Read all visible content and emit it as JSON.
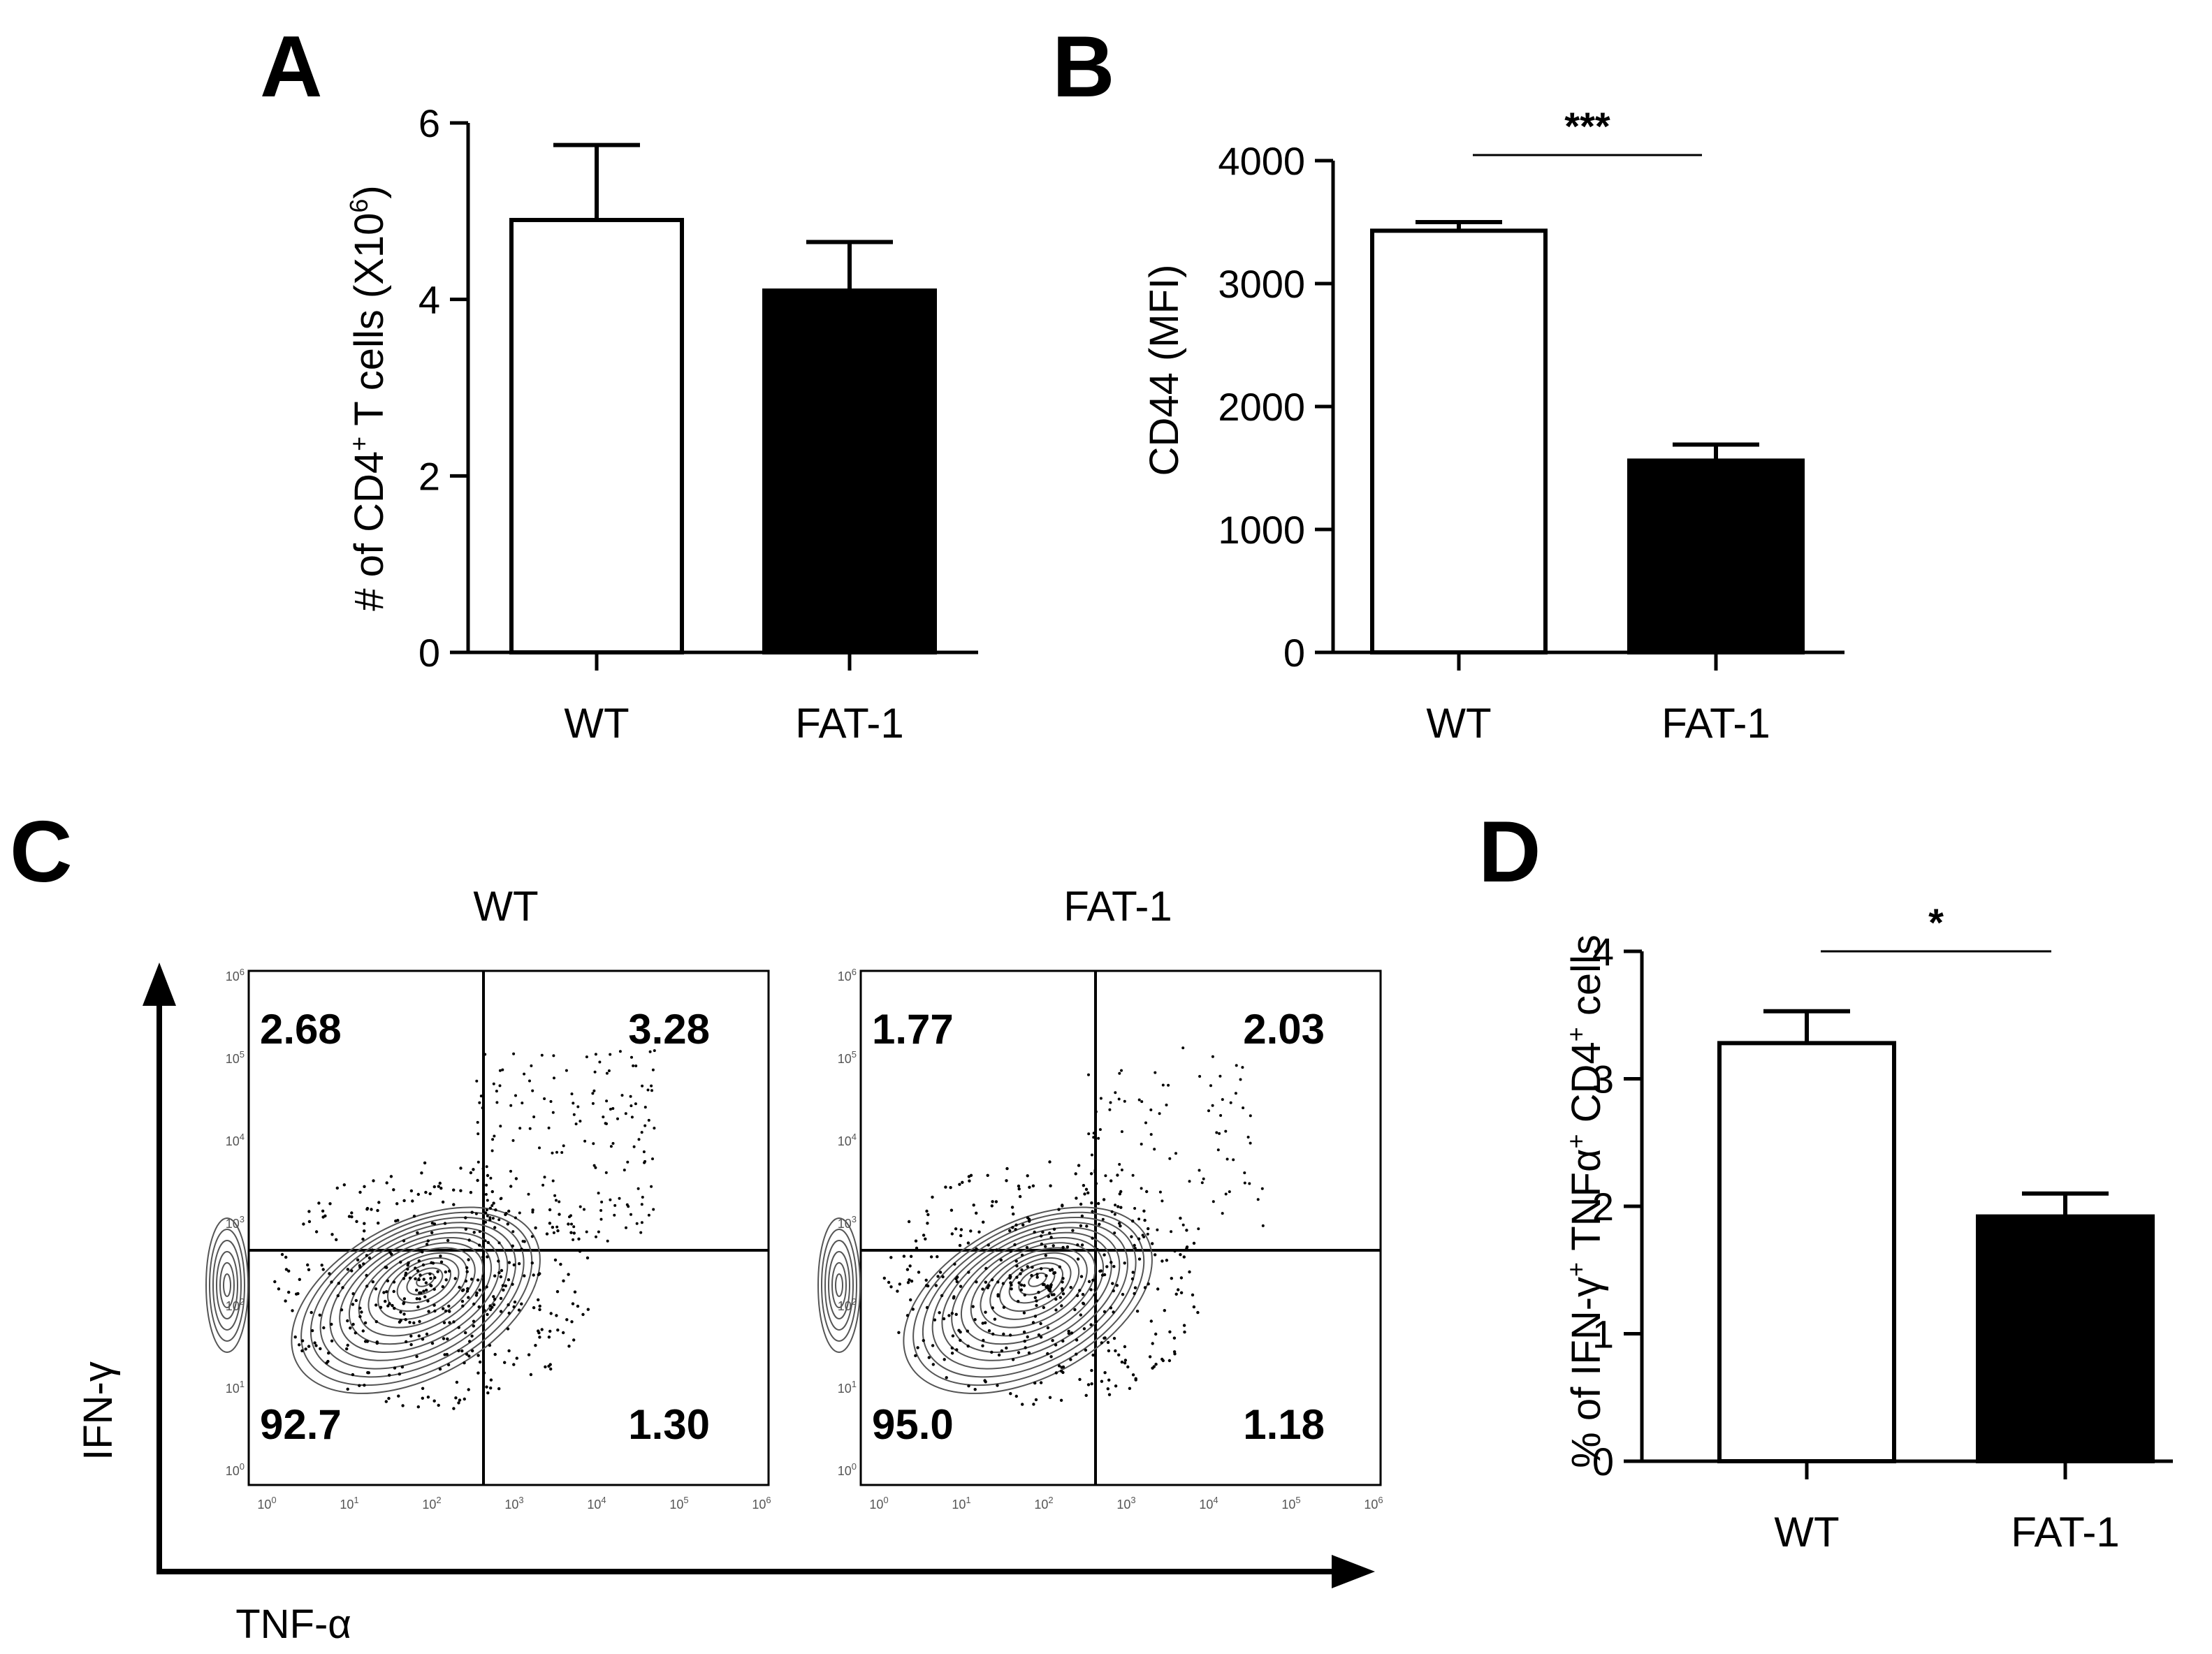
{
  "chart_data": [
    {
      "panel": "A",
      "type": "bar",
      "categories": [
        "WT",
        "FAT-1"
      ],
      "values": [
        4.9,
        4.1
      ],
      "errors": [
        0.85,
        0.55
      ],
      "fills": [
        "#ffffff",
        "#000000"
      ],
      "ylabel_main": "# of CD4",
      "ylabel_sup": "+",
      "ylabel_rest": " T cells (X10",
      "ylabel_sup2": "6",
      "ylabel_end": ")",
      "ylim": [
        0,
        6
      ],
      "yticks": [
        "0",
        "2",
        "4",
        "6"
      ],
      "significance": ""
    },
    {
      "panel": "B",
      "type": "bar",
      "categories": [
        "WT",
        "FAT-1"
      ],
      "values": [
        3430,
        1560
      ],
      "errors": [
        70,
        130
      ],
      "fills": [
        "#ffffff",
        "#000000"
      ],
      "ylabel_main": "CD44 (MFI)",
      "ylim": [
        0,
        4000
      ],
      "yticks": [
        "0",
        "1000",
        "2000",
        "3000",
        "4000"
      ],
      "significance": "***"
    },
    {
      "panel": "D",
      "type": "bar",
      "categories": [
        "WT",
        "FAT-1"
      ],
      "values": [
        3.28,
        1.92
      ],
      "errors": [
        0.25,
        0.18
      ],
      "fills": [
        "#ffffff",
        "#000000"
      ],
      "ylabel_main": "% of IFN-γ",
      "ylabel_sup": "+",
      "ylabel_rest": " TNFα",
      "ylabel_sup2": "+",
      "ylabel_mid": " CD4",
      "ylabel_sup3": "+",
      "ylabel_end": " cells",
      "ylim": [
        0,
        4
      ],
      "yticks": [
        "0",
        "1",
        "2",
        "3",
        "4"
      ],
      "significance": "*"
    },
    {
      "panel": "C",
      "type": "scatter",
      "xlabel": "TNF-α",
      "ylabel": "IFN-γ",
      "axis_ticks": [
        "10",
        "0",
        "10",
        "1",
        "10",
        "2",
        "10",
        "3",
        "10",
        "4",
        "10",
        "5",
        "10",
        "6"
      ],
      "plots": [
        {
          "title": "WT",
          "quadrants": {
            "ul": "2.68",
            "ur": "3.28",
            "ll": "92.7",
            "lr": "1.30"
          }
        },
        {
          "title": "FAT-1",
          "quadrants": {
            "ul": "1.77",
            "ur": "2.03",
            "ll": "95.0",
            "lr": "1.18"
          }
        }
      ]
    }
  ],
  "panel_letters": [
    "A",
    "B",
    "C",
    "D"
  ],
  "colors": {
    "ink": "#000000",
    "contour": "#555555",
    "background": "#ffffff"
  }
}
